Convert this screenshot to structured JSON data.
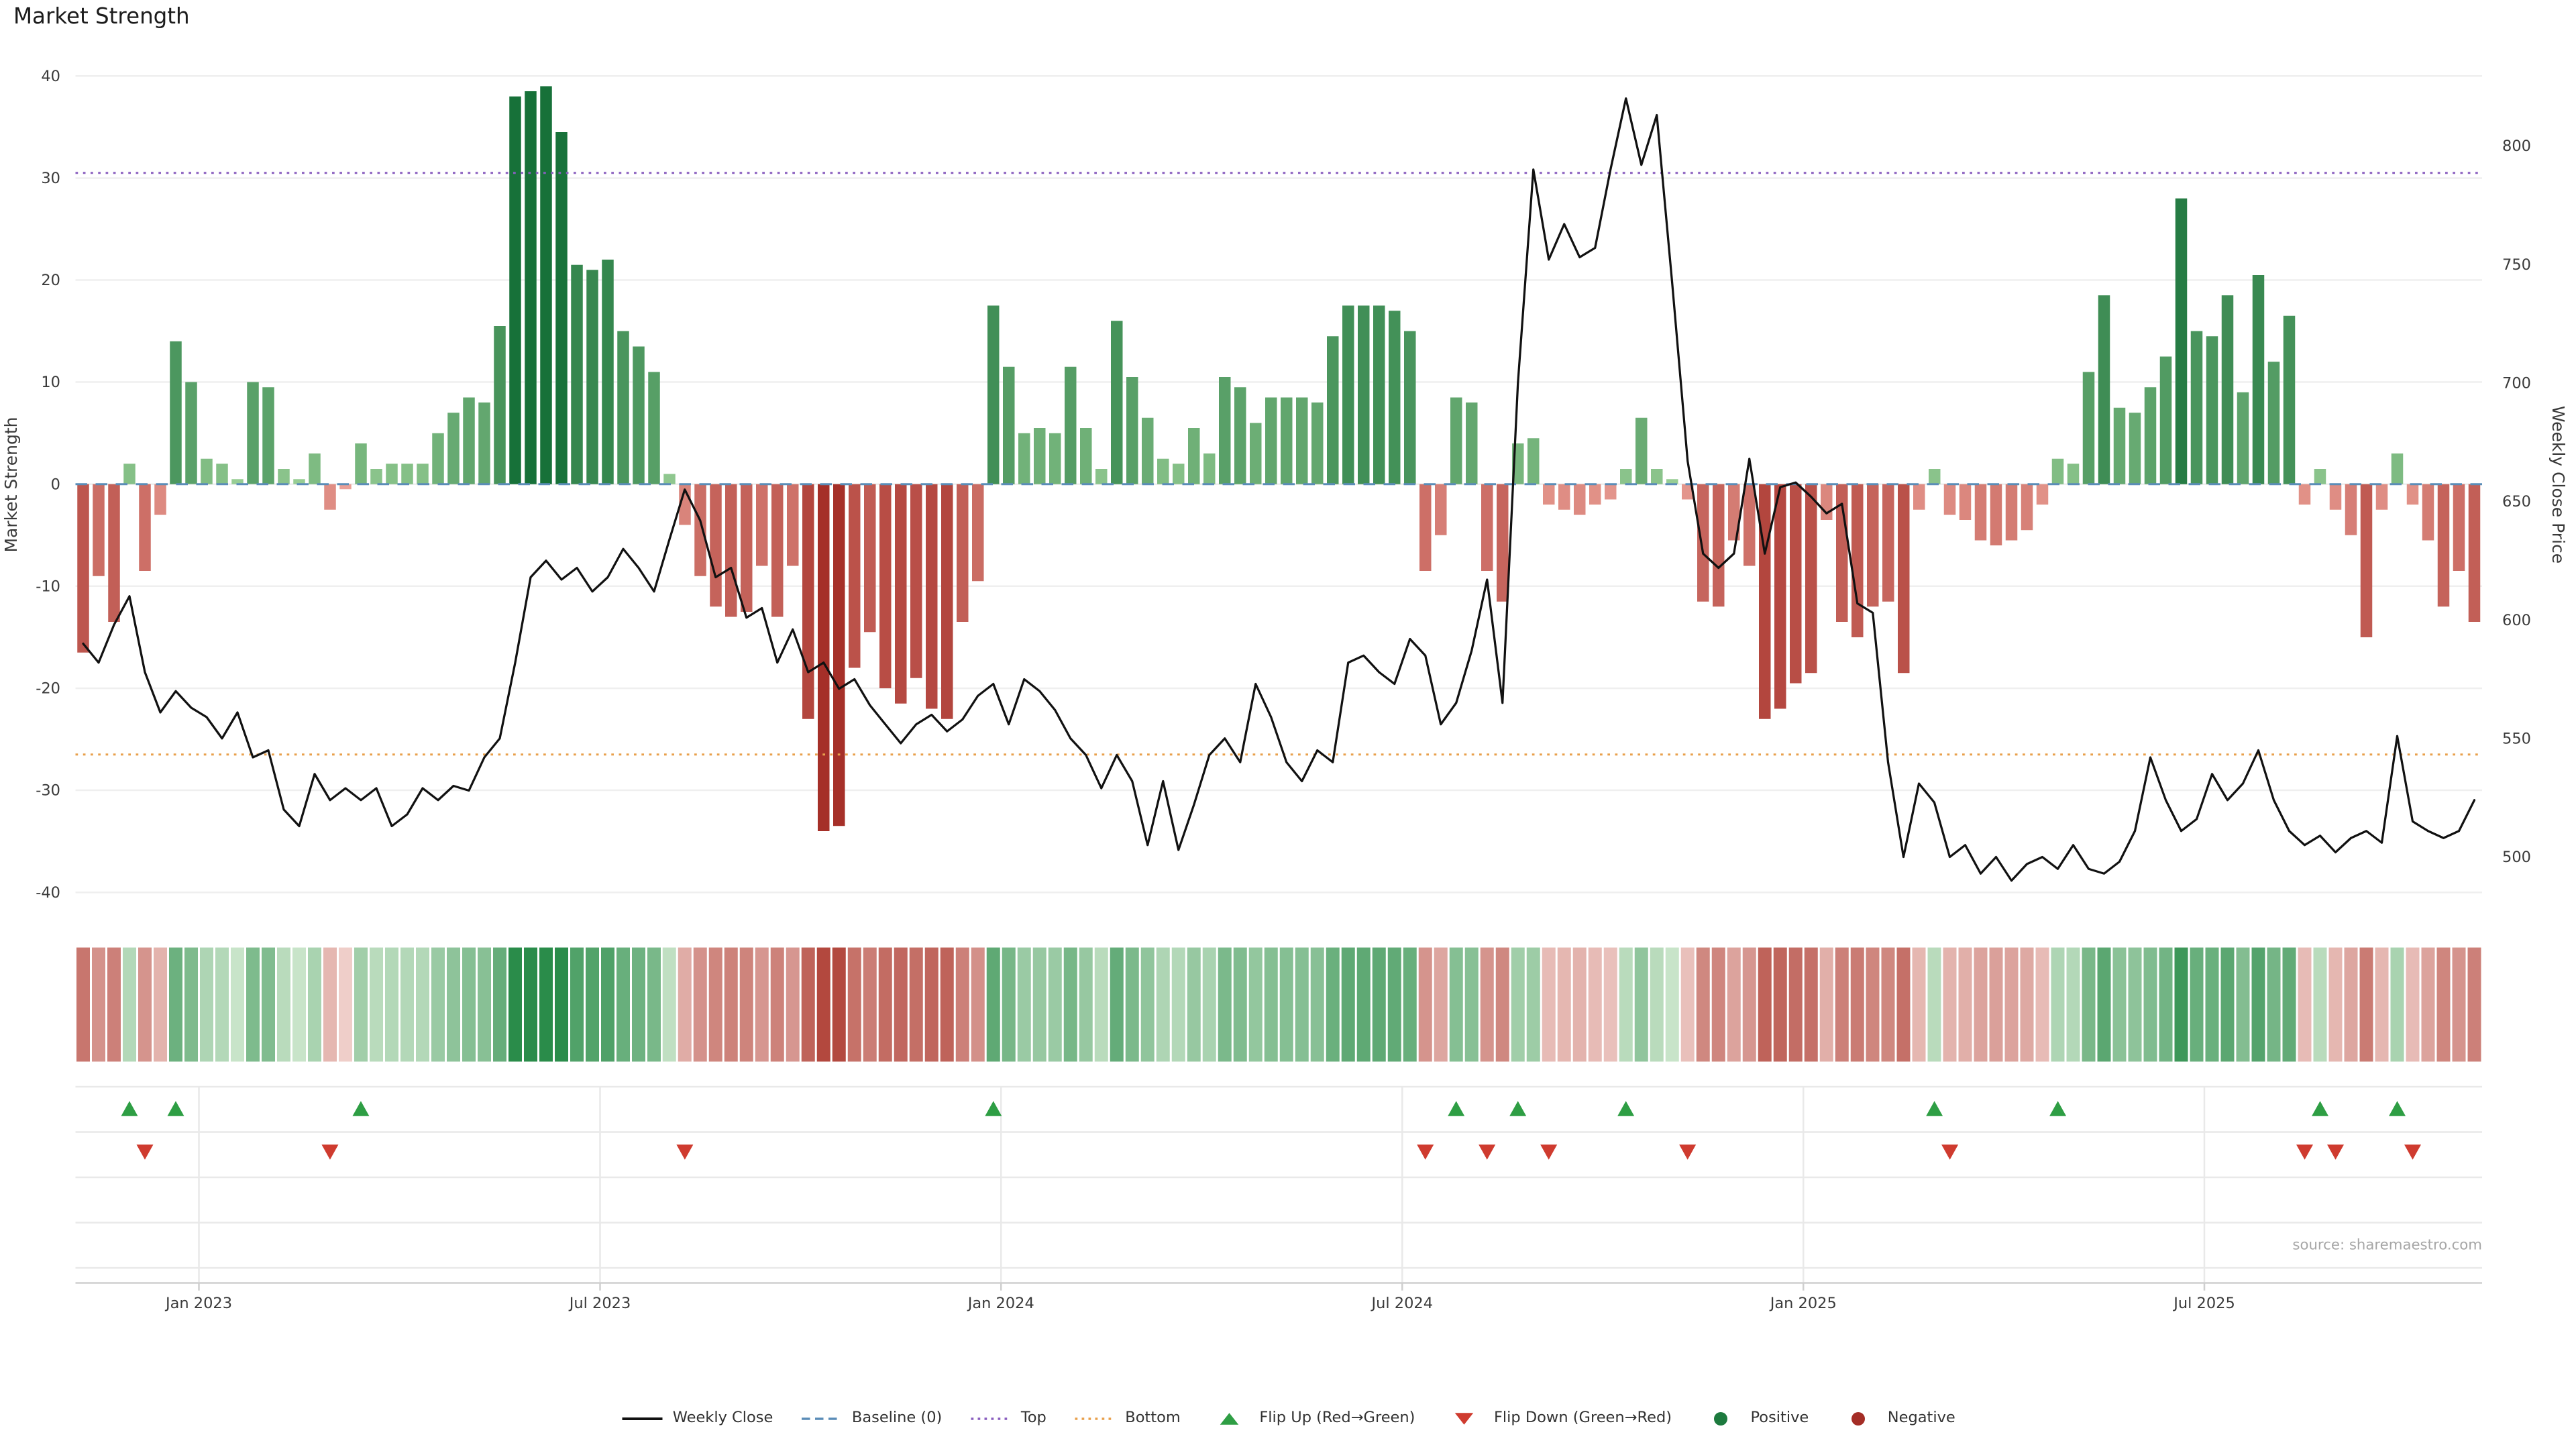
{
  "title": "Market Strength",
  "source_text": "source: sharemaestro.com",
  "colors": {
    "bar_pos_light": "#a8d9a0",
    "bar_pos_dark": "#177139",
    "bar_neg_light": "#f4b0a6",
    "bar_neg_dark": "#a42d26",
    "heat_pos_light": "#def0da",
    "heat_pos_dark": "#2a8c4a",
    "heat_neg_light": "#f7e0dc",
    "heat_neg_dark": "#b2463c",
    "line": "#111111",
    "baseline": "#5b8db8",
    "top": "#8a5fbf",
    "bottom": "#e8a04c",
    "flip_up": "#2e9e44",
    "flip_down": "#cf3b2f",
    "grid": "#efefef",
    "panel_grid": "#e9e9e9",
    "axis_line": "#cfcfcf",
    "axis_text": "#3a3a3a",
    "source_text": "#a6a6a6"
  },
  "chart_data": {
    "type": "combo",
    "title": "Market Strength",
    "n_weeks": 156,
    "x_ticks": [
      {
        "week": 8,
        "label": "Jan 2023"
      },
      {
        "week": 34,
        "label": "Jul 2023"
      },
      {
        "week": 60,
        "label": "Jan 2024"
      },
      {
        "week": 86,
        "label": "Jul 2024"
      },
      {
        "week": 112,
        "label": "Jan 2025"
      },
      {
        "week": 138,
        "label": "Jul 2025"
      }
    ],
    "left_axis": {
      "label": "Market Strength",
      "ticks": [
        40,
        30,
        20,
        10,
        0,
        -10,
        -20,
        -30,
        -40
      ],
      "range": [
        -41.3,
        41.2
      ]
    },
    "right_axis": {
      "label": "Weekly Close Price",
      "ticks": [
        800,
        750,
        700,
        650,
        600,
        550,
        500
      ],
      "range": [
        479,
        835
      ]
    },
    "reference_lines": {
      "baseline": 0,
      "top": 30.5,
      "bottom": -26.5
    },
    "grid": true,
    "series": [
      {
        "name": "Market Strength",
        "type": "bar",
        "axis": "left",
        "values": [
          -16.5,
          -9,
          -13.5,
          2,
          -8.5,
          -3,
          14,
          10,
          2.5,
          2,
          0.5,
          10,
          9.5,
          1.5,
          0.5,
          3,
          -2.5,
          -0.5,
          4,
          1.5,
          2,
          2,
          2,
          5,
          7,
          8.5,
          8,
          15.5,
          38,
          38.5,
          39,
          34.5,
          21.5,
          21,
          22,
          15,
          13.5,
          11,
          1,
          -4,
          -9,
          -12,
          -13,
          -12.5,
          -8,
          -13,
          -8,
          -23,
          -34,
          -33.5,
          -18,
          -14.5,
          -20,
          -21.5,
          -19,
          -22,
          -23,
          -13.5,
          -9.5,
          17.5,
          11.5,
          5,
          5.5,
          5,
          11.5,
          5.5,
          1.5,
          16,
          10.5,
          6.5,
          2.5,
          2,
          5.5,
          3,
          10.5,
          9.5,
          6,
          8.5,
          8.5,
          8.5,
          8,
          14.5,
          17.5,
          17.5,
          17.5,
          17,
          15,
          -8.5,
          -5,
          8.5,
          8,
          -8.5,
          -11.5,
          4,
          4.5,
          -2,
          -2.5,
          -3,
          -2,
          -1.5,
          1.5,
          6.5,
          1.5,
          0.5,
          -1.5,
          -11.5,
          -12,
          -5.5,
          -8,
          -23,
          -22,
          -19.5,
          -18.5,
          -3.5,
          -13.5,
          -15,
          -12,
          -11.5,
          -18.5,
          -2.5,
          1.5,
          -3,
          -3.5,
          -5.5,
          -6,
          -5.5,
          -4.5,
          -2,
          2.5,
          2,
          11,
          18.5,
          7.5,
          7,
          9.5,
          12.5,
          28,
          15,
          14.5,
          18.5,
          9,
          20.5,
          12,
          16.5,
          -2,
          1.5,
          -2.5,
          -5,
          -15,
          -2.5,
          3,
          -2,
          -5.5,
          -12,
          -8.5,
          -13.5
        ]
      },
      {
        "name": "Weekly Close",
        "type": "line",
        "axis": "right",
        "values": [
          590,
          582,
          598,
          610,
          578,
          561,
          570,
          563,
          559,
          550,
          561,
          542,
          545,
          520,
          513,
          535,
          524,
          529,
          524,
          529,
          513,
          518,
          529,
          524,
          530,
          528,
          542,
          550,
          582,
          618,
          625,
          617,
          622,
          612,
          618,
          630,
          622,
          612,
          634,
          655,
          642,
          618,
          622,
          601,
          605,
          582,
          596,
          578,
          582,
          571,
          575,
          564,
          556,
          548,
          556,
          560,
          553,
          558,
          568,
          573,
          556,
          575,
          570,
          562,
          550,
          543,
          529,
          543,
          532,
          505,
          532,
          503,
          522,
          543,
          550,
          540,
          573,
          559,
          540,
          532,
          545,
          540,
          582,
          585,
          578,
          573,
          592,
          585,
          556,
          565,
          587,
          617,
          565,
          700,
          790,
          752,
          767,
          753,
          757,
          790,
          820,
          792,
          813,
          742,
          667,
          628,
          622,
          628,
          668,
          628,
          656,
          658,
          652,
          645,
          649,
          607,
          603,
          540,
          500,
          531,
          523,
          500,
          505,
          493,
          500,
          490,
          497,
          500,
          495,
          505,
          495,
          493,
          498,
          511,
          542,
          524,
          511,
          516,
          535,
          524,
          531,
          545,
          524,
          511,
          505,
          509,
          502,
          508,
          511,
          506,
          551,
          515,
          511,
          508,
          511,
          524
        ]
      }
    ],
    "heatmap": {
      "rows": 1,
      "source": "Market Strength bar values"
    },
    "flip_up_weeks": [
      3,
      6,
      18,
      59,
      89,
      93,
      100,
      120,
      128,
      145,
      150
    ],
    "flip_down_weeks": [
      4,
      16,
      39,
      87,
      91,
      95,
      104,
      121,
      144,
      146,
      151
    ],
    "legend_position": "bottom-center",
    "legend": [
      {
        "label": "Weekly Close",
        "swatch": "line",
        "color": "#111111",
        "icon": "weekly-close-line"
      },
      {
        "label": "Baseline (0)",
        "swatch": "dashed-line",
        "color": "#5b8db8",
        "icon": "baseline-dash"
      },
      {
        "label": "Top",
        "swatch": "dotted-line",
        "color": "#8a5fbf",
        "icon": "top-dotted"
      },
      {
        "label": "Bottom",
        "swatch": "dotted-line",
        "color": "#e8a04c",
        "icon": "bottom-dotted"
      },
      {
        "label": "Flip Up (Red→Green)",
        "swatch": "triangle-up",
        "color": "#2e9e44",
        "icon": "flip-up-triangle"
      },
      {
        "label": "Flip Down (Green→Red)",
        "swatch": "triangle-down",
        "color": "#cf3b2f",
        "icon": "flip-down-triangle"
      },
      {
        "label": "Positive",
        "swatch": "circle",
        "color": "#1d7a3e",
        "icon": "positive-dot"
      },
      {
        "label": "Negative",
        "swatch": "circle",
        "color": "#a42d26",
        "icon": "negative-dot"
      }
    ]
  }
}
